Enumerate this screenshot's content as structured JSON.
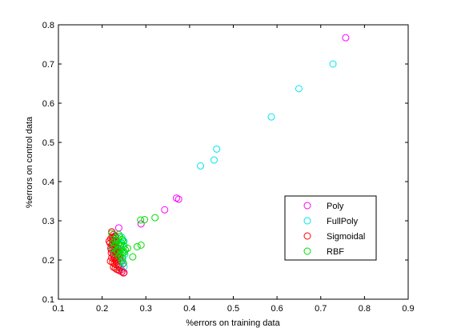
{
  "chart_data": {
    "type": "scatter",
    "title": "",
    "xlabel": "%errors on training data",
    "ylabel": "%errors on control data",
    "xlim": [
      0.1,
      0.9
    ],
    "ylim": [
      0.1,
      0.8
    ],
    "xticks": [
      "0.1",
      "0.2",
      "0.3",
      "0.4",
      "0.5",
      "0.6",
      "0.7",
      "0.8",
      "0.9"
    ],
    "yticks": [
      "0.1",
      "0.2",
      "0.3",
      "0.4",
      "0.5",
      "0.6",
      "0.7",
      "0.8"
    ],
    "grid": false,
    "legend_position": "lower-right",
    "series": [
      {
        "name": "Poly",
        "color": "#ff00ff",
        "points": [
          [
            0.757,
            0.767
          ],
          [
            0.37,
            0.358
          ],
          [
            0.375,
            0.355
          ],
          [
            0.343,
            0.328
          ],
          [
            0.289,
            0.292
          ],
          [
            0.238,
            0.282
          ],
          [
            0.23,
            0.262
          ],
          [
            0.225,
            0.255
          ],
          [
            0.222,
            0.238
          ],
          [
            0.232,
            0.231
          ],
          [
            0.228,
            0.222
          ],
          [
            0.236,
            0.215
          ],
          [
            0.229,
            0.206
          ],
          [
            0.242,
            0.198
          ],
          [
            0.247,
            0.19
          ],
          [
            0.24,
            0.182
          ],
          [
            0.244,
            0.175
          ],
          [
            0.25,
            0.168
          ],
          [
            0.233,
            0.245
          ],
          [
            0.226,
            0.212
          ],
          [
            0.235,
            0.192
          ],
          [
            0.221,
            0.226
          ]
        ]
      },
      {
        "name": "FullPoly",
        "color": "#00e5ee",
        "points": [
          [
            0.728,
            0.7
          ],
          [
            0.65,
            0.637
          ],
          [
            0.587,
            0.565
          ],
          [
            0.462,
            0.483
          ],
          [
            0.456,
            0.455
          ],
          [
            0.425,
            0.44
          ],
          [
            0.245,
            0.258
          ],
          [
            0.25,
            0.248
          ],
          [
            0.243,
            0.24
          ],
          [
            0.248,
            0.232
          ],
          [
            0.246,
            0.222
          ],
          [
            0.252,
            0.215
          ],
          [
            0.24,
            0.21
          ],
          [
            0.247,
            0.203
          ],
          [
            0.244,
            0.195
          ],
          [
            0.238,
            0.188
          ],
          [
            0.25,
            0.183
          ],
          [
            0.242,
            0.178
          ],
          [
            0.236,
            0.2
          ]
        ]
      },
      {
        "name": "Sigmoidal",
        "color": "#ff0000",
        "points": [
          [
            0.222,
            0.272
          ],
          [
            0.226,
            0.265
          ],
          [
            0.229,
            0.26
          ],
          [
            0.22,
            0.255
          ],
          [
            0.224,
            0.25
          ],
          [
            0.228,
            0.246
          ],
          [
            0.218,
            0.243
          ],
          [
            0.223,
            0.24
          ],
          [
            0.227,
            0.236
          ],
          [
            0.231,
            0.233
          ],
          [
            0.22,
            0.23
          ],
          [
            0.225,
            0.227
          ],
          [
            0.229,
            0.224
          ],
          [
            0.233,
            0.221
          ],
          [
            0.221,
            0.218
          ],
          [
            0.226,
            0.215
          ],
          [
            0.23,
            0.212
          ],
          [
            0.234,
            0.209
          ],
          [
            0.222,
            0.206
          ],
          [
            0.227,
            0.203
          ],
          [
            0.231,
            0.2
          ],
          [
            0.235,
            0.197
          ],
          [
            0.224,
            0.194
          ],
          [
            0.228,
            0.191
          ],
          [
            0.232,
            0.188
          ],
          [
            0.237,
            0.185
          ],
          [
            0.226,
            0.182
          ],
          [
            0.23,
            0.179
          ],
          [
            0.234,
            0.176
          ],
          [
            0.239,
            0.173
          ],
          [
            0.245,
            0.17
          ],
          [
            0.249,
            0.167
          ],
          [
            0.219,
            0.197
          ],
          [
            0.236,
            0.23
          ],
          [
            0.238,
            0.215
          ],
          [
            0.24,
            0.205
          ],
          [
            0.224,
            0.258
          ],
          [
            0.233,
            0.248
          ],
          [
            0.216,
            0.248
          ]
        ]
      },
      {
        "name": "RBF",
        "color": "#00dd00",
        "points": [
          [
            0.288,
            0.302
          ],
          [
            0.297,
            0.303
          ],
          [
            0.321,
            0.308
          ],
          [
            0.289,
            0.238
          ],
          [
            0.28,
            0.234
          ],
          [
            0.27,
            0.208
          ],
          [
            0.258,
            0.23
          ],
          [
            0.253,
            0.226
          ],
          [
            0.25,
            0.236
          ],
          [
            0.248,
            0.248
          ],
          [
            0.246,
            0.252
          ],
          [
            0.244,
            0.244
          ],
          [
            0.242,
            0.238
          ],
          [
            0.24,
            0.26
          ],
          [
            0.238,
            0.265
          ],
          [
            0.236,
            0.255
          ],
          [
            0.234,
            0.248
          ],
          [
            0.232,
            0.242
          ],
          [
            0.23,
            0.25
          ],
          [
            0.228,
            0.237
          ],
          [
            0.226,
            0.244
          ],
          [
            0.224,
            0.23
          ],
          [
            0.222,
            0.268
          ],
          [
            0.236,
            0.222
          ],
          [
            0.241,
            0.214
          ],
          [
            0.246,
            0.206
          ],
          [
            0.243,
            0.228
          ],
          [
            0.247,
            0.218
          ],
          [
            0.245,
            0.198
          ],
          [
            0.249,
            0.192
          ],
          [
            0.239,
            0.21
          ],
          [
            0.233,
            0.224
          ],
          [
            0.229,
            0.218
          ],
          [
            0.251,
            0.22
          ]
        ]
      }
    ]
  }
}
